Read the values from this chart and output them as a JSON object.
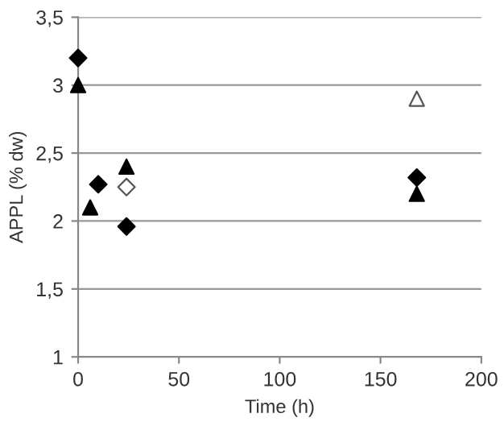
{
  "chart_data": {
    "type": "scatter",
    "xlabel": "Time (h)",
    "ylabel": "APPL (% dw)",
    "xlim": [
      0,
      200
    ],
    "xticks": [
      0,
      50,
      100,
      150,
      200
    ],
    "ylim": [
      1,
      3.5
    ],
    "yticks": [
      1,
      {
        "value": 1.5,
        "label": "1,5"
      },
      2,
      {
        "value": 2.5,
        "label": "2,5"
      },
      3,
      {
        "value": 3.5,
        "label": "3,5"
      }
    ],
    "grid": "y",
    "series": [
      {
        "color": "#000000",
        "marker": "diamond",
        "x": [
          0,
          10,
          24,
          168
        ],
        "values": [
          3.2,
          2.27,
          1.96,
          2.32
        ]
      },
      {
        "color": "#000000",
        "marker": "triangle",
        "x": [
          0,
          6,
          24,
          168
        ],
        "values": [
          3.0,
          2.1,
          2.4,
          2.2
        ]
      },
      {
        "color": "#ffffff",
        "marker": "diamond",
        "x": [
          24
        ],
        "values": [
          2.25
        ]
      },
      {
        "color": "#ffffff",
        "marker": "triangle",
        "x": [
          168
        ],
        "values": [
          2.9
        ]
      }
    ]
  }
}
